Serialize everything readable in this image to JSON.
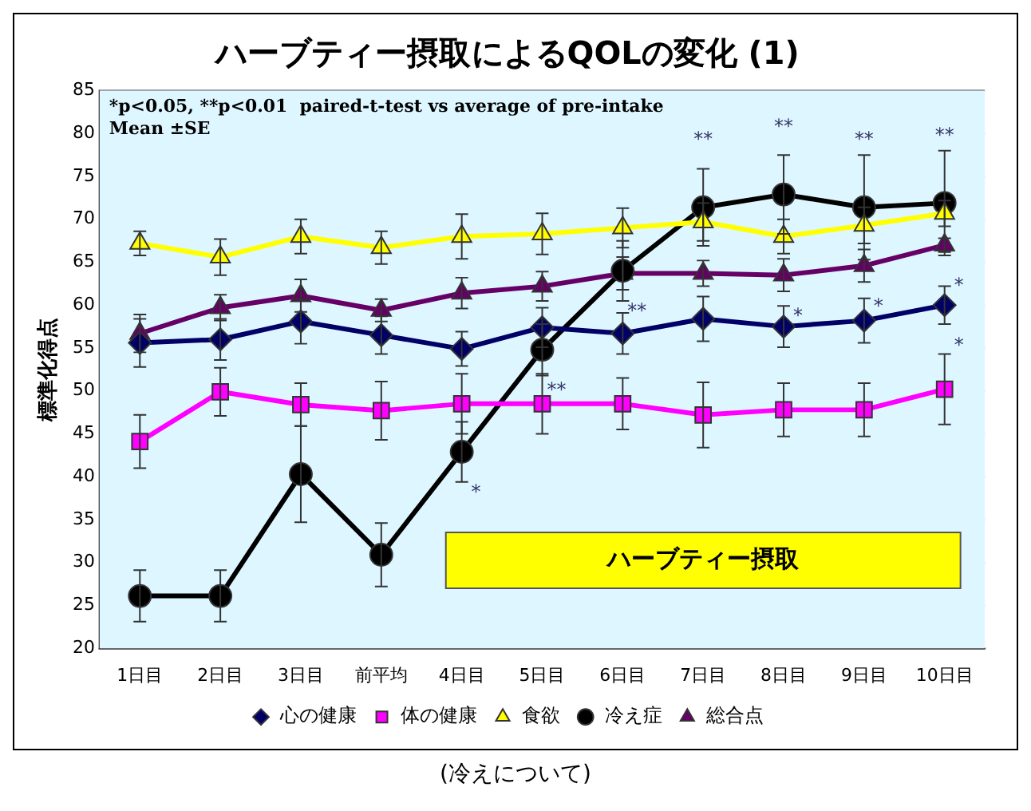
{
  "chart_data": {
    "type": "line",
    "title": "ハーブティー摂取によるQOLの変化 (1)",
    "ylabel": "標準化得点",
    "categories": [
      "1日目",
      "2日目",
      "3日目",
      "前平均",
      "4日目",
      "5日目",
      "6日目",
      "7日目",
      "8日目",
      "9日目",
      "10日目"
    ],
    "series": [
      {
        "name": "心の健康",
        "color": "#000066",
        "marker": "diamond",
        "values": [
          55.6,
          56,
          58.1,
          56.5,
          54.9,
          57.4,
          56.7,
          58.4,
          57.5,
          58.2,
          60.0
        ],
        "errors": [
          2.8,
          2.4,
          2.6,
          2.2,
          2,
          2.3,
          2.4,
          2.6,
          2.4,
          2.6,
          2.2
        ]
      },
      {
        "name": "体の健康",
        "color": "#ff00ff",
        "marker": "square",
        "values": [
          44.1,
          49.9,
          48.4,
          47.7,
          48.5,
          48.5,
          48.5,
          47.2,
          47.8,
          47.8,
          50.2
        ],
        "errors": [
          3.1,
          2.8,
          2.5,
          3.4,
          3.5,
          3.5,
          3,
          3.8,
          3.1,
          3.1,
          4.1
        ]
      },
      {
        "name": "食欲",
        "color": "#ffff00",
        "marker": "triangle",
        "values": [
          67.2,
          65.6,
          68.0,
          66.7,
          68.0,
          68.3,
          69.0,
          69.7,
          68.0,
          69.3,
          70.7
        ],
        "errors": [
          1.4,
          2.1,
          2,
          1.9,
          2.6,
          2.4,
          2.3,
          2.2,
          2,
          2.1,
          1.5
        ]
      },
      {
        "name": "冷え症",
        "color": "#000000",
        "marker": "circle",
        "values": [
          26.1,
          26.1,
          40.3,
          30.9,
          42.9,
          54.8,
          64.0,
          71.4,
          72.9,
          71.4,
          71.9
        ],
        "errors": [
          3,
          3,
          5.6,
          3.7,
          3.5,
          3,
          3.5,
          4.5,
          4.6,
          6.1,
          6.1
        ]
      },
      {
        "name": "総合点",
        "color": "#660066",
        "marker": "triangle",
        "values": [
          56.7,
          59.7,
          61.1,
          59.4,
          61.4,
          62.2,
          63.7,
          63.7,
          63.5,
          64.6,
          67.0
        ],
        "errors": [
          2.2,
          1.5,
          1.9,
          1.3,
          1.8,
          1.7,
          1.9,
          1.5,
          1.9,
          1.9,
          0.8
        ]
      }
    ],
    "ylim": [
      20,
      85
    ],
    "yticks": [
      20,
      25,
      30,
      35,
      40,
      45,
      50,
      55,
      60,
      65,
      70,
      75,
      80,
      85
    ],
    "grid": "y",
    "legend": "bottom",
    "line_style": "solid",
    "bands": [
      {
        "axis": "x",
        "from": "4日目",
        "to": "10日目",
        "label": "ハーブティー摂取",
        "color": "#ffff00"
      }
    ],
    "annotations": [
      "*p<0.05, **p<0.01  paired-t-test vs average of pre-intake",
      "Mean ±SE",
      {
        "text": "*",
        "x": "4日目",
        "y": 42.9
      },
      {
        "text": "**",
        "x": "5日目",
        "y": 54.8
      },
      {
        "text": "**",
        "x": "6日目",
        "y": 64.0
      },
      {
        "text": "**",
        "x": "7日目",
        "y": 71.4
      },
      {
        "text": "**",
        "x": "8日目",
        "y": 72.9
      },
      {
        "text": "**",
        "x": "9日目",
        "y": 71.4
      },
      {
        "text": "**",
        "x": "10日目",
        "y": 71.9
      },
      {
        "text": "*",
        "x": "8日目",
        "y": 63.5
      },
      {
        "text": "*",
        "x": "9日目",
        "y": 64.6
      },
      {
        "text": "*",
        "x": "10日目",
        "y": 67.0
      },
      {
        "text": "*",
        "x": "10日目",
        "y": 60.0
      },
      "(冷えについて)"
    ]
  }
}
